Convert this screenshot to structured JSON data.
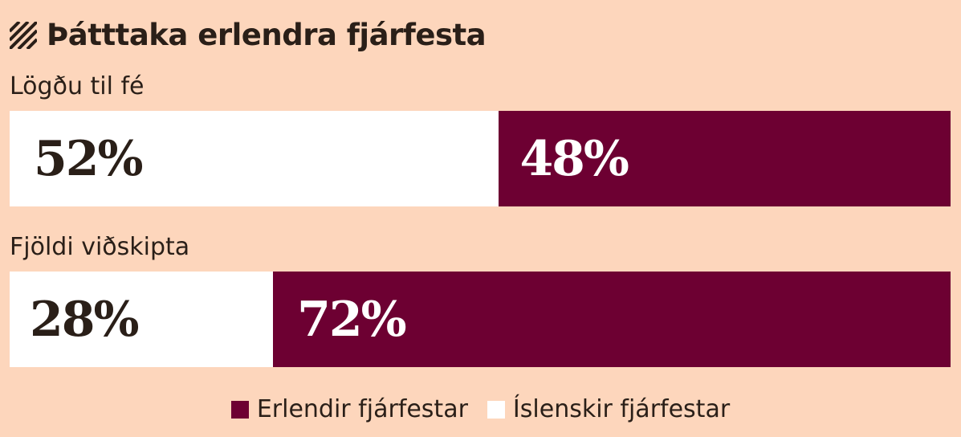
{
  "title": "Þátttaka erlendra fjárfesta",
  "colors": {
    "background": "#fdd6bc",
    "foreign": "#6d0032",
    "icelandic": "#ffffff",
    "text": "#2a1f18"
  },
  "chart_data": {
    "type": "bar",
    "orientation": "horizontal-stacked-100",
    "title": "Þátttaka erlendra fjárfesta",
    "categories": [
      "Lögðu til fé",
      "Fjöldi viðskipta"
    ],
    "series": [
      {
        "name": "Íslenskir fjárfestar",
        "color": "#ffffff",
        "values": [
          52,
          28
        ],
        "labels": [
          "52%",
          "28%"
        ]
      },
      {
        "name": "Erlendir fjárfestar",
        "color": "#6d0032",
        "values": [
          48,
          72
        ],
        "labels": [
          "48%",
          "72%"
        ]
      }
    ],
    "legend": {
      "position": "bottom-center",
      "entries": [
        "Erlendir fjárfestar",
        "Íslenskir fjárfestar"
      ]
    },
    "unit": "%",
    "ylim": [
      0,
      100
    ],
    "grid": false
  }
}
